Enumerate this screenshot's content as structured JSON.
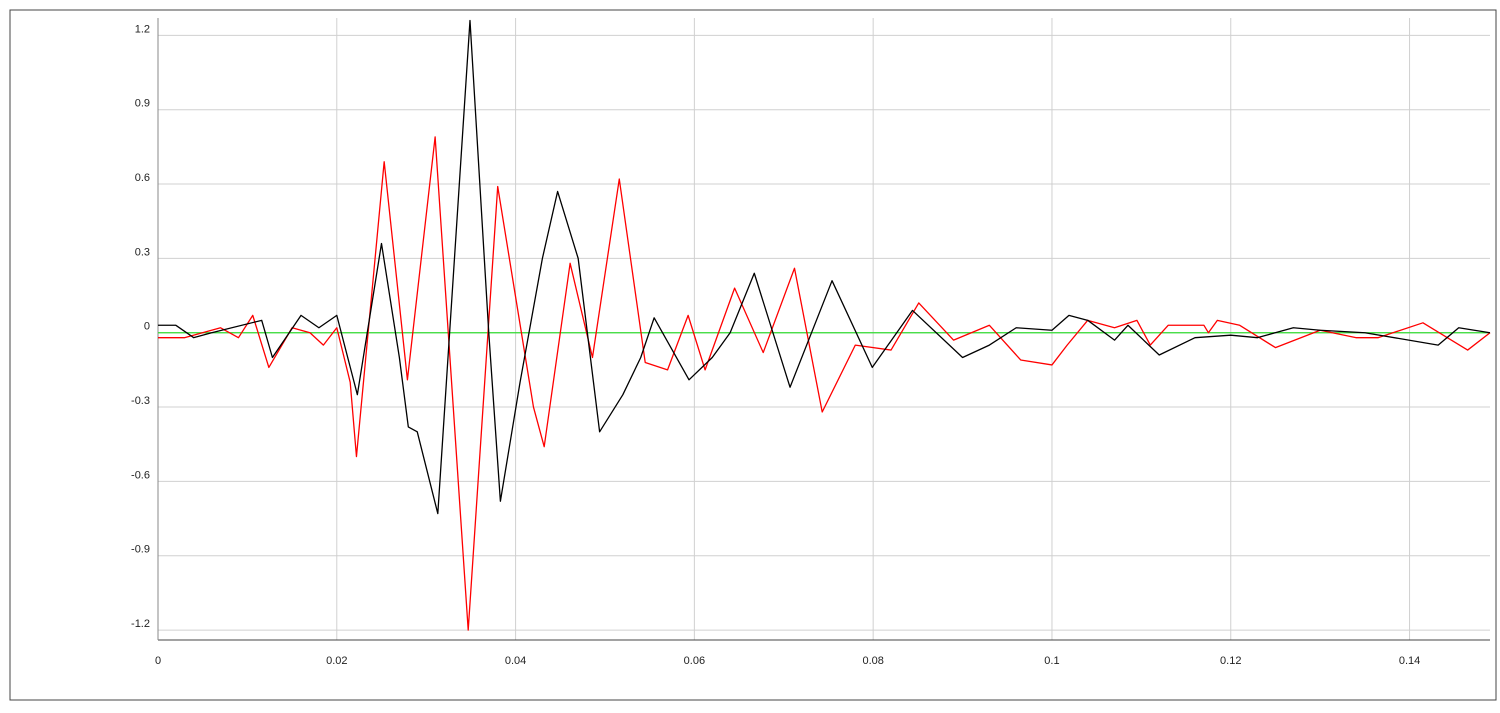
{
  "chart_data": {
    "type": "line",
    "xlim": [
      0,
      0.149
    ],
    "ylim": [
      -1.24,
      1.27
    ],
    "xticks": [
      0,
      0.02,
      0.04,
      0.06,
      0.08,
      0.1,
      0.12,
      0.14
    ],
    "yticks": [
      -1.2,
      -0.9,
      -0.6,
      -0.3,
      0,
      0.3,
      0.6,
      0.9,
      1.2
    ],
    "grid": true,
    "series": [
      {
        "color": "#ff0000",
        "x": [
          0,
          0.003,
          0.007,
          0.009,
          0.0106,
          0.0124,
          0.015,
          0.017,
          0.0185,
          0.02,
          0.0215,
          0.0222,
          0.0253,
          0.0279,
          0.031,
          0.0347,
          0.038,
          0.042,
          0.0432,
          0.0461,
          0.0486,
          0.0516,
          0.0545,
          0.057,
          0.0593,
          0.0612,
          0.0645,
          0.0677,
          0.0712,
          0.0743,
          0.078,
          0.082,
          0.0851,
          0.089,
          0.093,
          0.0965,
          0.1,
          0.1017,
          0.104,
          0.107,
          0.1095,
          0.111,
          0.113,
          0.117,
          0.1175,
          0.1185,
          0.121,
          0.125,
          0.13,
          0.134,
          0.1365,
          0.1415,
          0.1465,
          0.149
        ],
        "values": [
          -0.02,
          -0.02,
          0.02,
          -0.02,
          0.07,
          -0.14,
          0.02,
          0.0,
          -0.05,
          0.02,
          -0.2,
          -0.5,
          0.69,
          -0.19,
          0.79,
          -1.2,
          0.59,
          -0.3,
          -0.46,
          0.28,
          -0.1,
          0.62,
          -0.12,
          -0.15,
          0.07,
          -0.15,
          0.18,
          -0.08,
          0.26,
          -0.32,
          -0.05,
          -0.07,
          0.12,
          -0.03,
          0.03,
          -0.11,
          -0.13,
          -0.05,
          0.05,
          0.02,
          0.05,
          -0.05,
          0.03,
          0.03,
          0.0,
          0.05,
          0.03,
          -0.06,
          0.01,
          -0.02,
          -0.02,
          0.04,
          -0.07,
          0.0
        ]
      },
      {
        "color": "#000000",
        "x": [
          0,
          0.002,
          0.004,
          0.006,
          0.0116,
          0.0128,
          0.016,
          0.018,
          0.02,
          0.0223,
          0.025,
          0.027,
          0.028,
          0.029,
          0.0313,
          0.0349,
          0.037,
          0.0383,
          0.0405,
          0.043,
          0.0447,
          0.047,
          0.0494,
          0.052,
          0.054,
          0.0555,
          0.0594,
          0.062,
          0.064,
          0.0667,
          0.0707,
          0.0754,
          0.0799,
          0.0844,
          0.09,
          0.093,
          0.096,
          0.1,
          0.1019,
          0.104,
          0.107,
          0.1085,
          0.112,
          0.116,
          0.12,
          0.123,
          0.127,
          0.13,
          0.135,
          0.1432,
          0.1455,
          0.149
        ],
        "values": [
          0.03,
          0.03,
          -0.02,
          0.0,
          0.05,
          -0.1,
          0.07,
          0.02,
          0.07,
          -0.25,
          0.36,
          -0.1,
          -0.38,
          -0.4,
          -0.73,
          1.26,
          0.0,
          -0.68,
          -0.2,
          0.3,
          0.57,
          0.3,
          -0.4,
          -0.25,
          -0.1,
          0.06,
          -0.19,
          -0.1,
          0.0,
          0.24,
          -0.22,
          0.21,
          -0.14,
          0.09,
          -0.1,
          -0.05,
          0.02,
          0.01,
          0.07,
          0.05,
          -0.03,
          0.03,
          -0.09,
          -0.02,
          -0.01,
          -0.02,
          0.02,
          0.01,
          0.0,
          -0.05,
          0.02,
          0.0
        ]
      },
      {
        "color": "#33dd33",
        "x": [
          0,
          0.149
        ],
        "values": [
          0,
          0
        ]
      }
    ]
  }
}
